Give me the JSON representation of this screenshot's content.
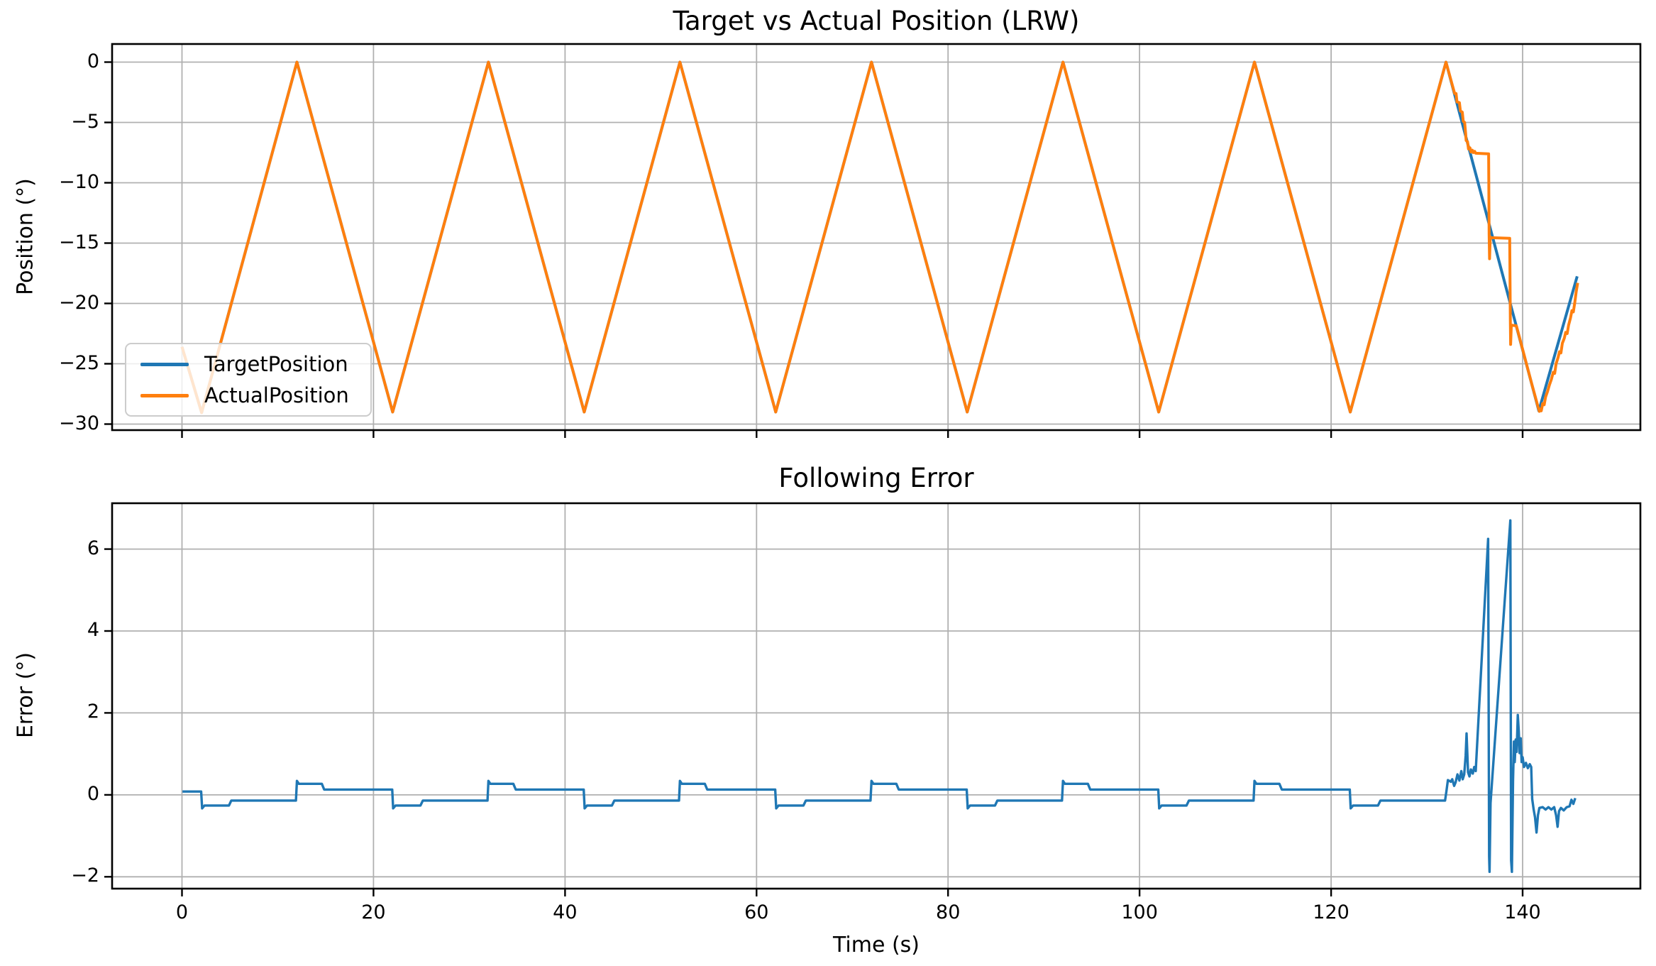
{
  "figure": {
    "background": "#ffffff",
    "grid_color": "#b0b0b0",
    "spine_color": "#000000",
    "text_color": "#000000"
  },
  "chart_data": [
    {
      "type": "line",
      "title": "Target vs Actual Position (LRW)",
      "xlabel": "",
      "ylabel": "Position (°)",
      "xlim": [
        -7.3,
        152.3
      ],
      "ylim": [
        -30.5,
        1.5
      ],
      "x_ticks": [
        0,
        20,
        40,
        60,
        80,
        100,
        120,
        140
      ],
      "x_tick_labels_visible": false,
      "y_ticks": [
        0,
        -5,
        -10,
        -15,
        -20,
        -25,
        -30
      ],
      "grid": true,
      "legend": {
        "location": "lower left",
        "entries": [
          "TargetPosition",
          "ActualPosition"
        ]
      },
      "series": [
        {
          "name": "TargetPosition",
          "color": "#1f77b4",
          "points": [
            [
              0.0,
              -23.6
            ],
            [
              2.05,
              -29.05
            ],
            [
              12.0,
              0.0
            ],
            [
              22.0,
              -29.0
            ],
            [
              32.0,
              0.0
            ],
            [
              42.0,
              -29.0
            ],
            [
              52.0,
              0.0
            ],
            [
              62.0,
              -29.0
            ],
            [
              72.0,
              0.0
            ],
            [
              82.0,
              -29.0
            ],
            [
              92.0,
              0.0
            ],
            [
              102.0,
              -29.0
            ],
            [
              112.0,
              0.0
            ],
            [
              122.0,
              -29.0
            ],
            [
              132.0,
              0.0
            ],
            [
              141.7,
              -28.9
            ],
            [
              145.7,
              -17.75
            ]
          ]
        },
        {
          "name": "ActualPosition",
          "color": "#ff7f0e",
          "points": [
            [
              0.0,
              -23.6
            ],
            [
              2.05,
              -29.05
            ],
            [
              12.0,
              0.0
            ],
            [
              22.0,
              -29.0
            ],
            [
              32.0,
              0.0
            ],
            [
              42.0,
              -29.0
            ],
            [
              52.0,
              0.0
            ],
            [
              62.0,
              -29.0
            ],
            [
              72.0,
              0.0
            ],
            [
              82.0,
              -29.0
            ],
            [
              92.0,
              0.0
            ],
            [
              102.0,
              -29.0
            ],
            [
              112.0,
              0.0
            ],
            [
              122.0,
              -29.0
            ],
            [
              132.0,
              0.0
            ],
            [
              132.9,
              -2.6
            ],
            [
              133.05,
              -2.6
            ],
            [
              133.15,
              -3.3
            ],
            [
              133.4,
              -3.35
            ],
            [
              133.5,
              -4.05
            ],
            [
              133.7,
              -4.15
            ],
            [
              133.8,
              -4.9
            ],
            [
              133.95,
              -5.0
            ],
            [
              134.05,
              -5.9
            ],
            [
              134.1,
              -6.5
            ],
            [
              134.25,
              -6.6
            ],
            [
              134.35,
              -7.2
            ],
            [
              134.5,
              -7.1
            ],
            [
              134.6,
              -7.45
            ],
            [
              134.75,
              -7.3
            ],
            [
              134.85,
              -7.5
            ],
            [
              135.0,
              -7.4
            ],
            [
              135.1,
              -7.55
            ],
            [
              136.45,
              -7.6
            ],
            [
              136.5,
              -14.3
            ],
            [
              136.55,
              -16.3
            ],
            [
              136.62,
              -14.5
            ],
            [
              136.75,
              -14.55
            ],
            [
              138.65,
              -14.6
            ],
            [
              138.72,
              -21.4
            ],
            [
              138.75,
              -23.4
            ],
            [
              138.82,
              -21.8
            ],
            [
              139.35,
              -21.85
            ],
            [
              139.6,
              -22.6
            ],
            [
              140.0,
              -23.8
            ],
            [
              140.5,
              -25.3
            ],
            [
              141.0,
              -26.8
            ],
            [
              141.35,
              -27.8
            ],
            [
              141.55,
              -28.4
            ],
            [
              141.75,
              -28.95
            ],
            [
              141.85,
              -28.75
            ],
            [
              141.95,
              -28.9
            ],
            [
              142.1,
              -28.3
            ],
            [
              142.25,
              -28.4
            ],
            [
              142.4,
              -27.75
            ],
            [
              142.6,
              -27.3
            ],
            [
              142.8,
              -26.75
            ],
            [
              143.0,
              -26.3
            ],
            [
              143.2,
              -25.7
            ],
            [
              143.35,
              -25.8
            ],
            [
              143.5,
              -25.0
            ],
            [
              143.7,
              -24.5
            ],
            [
              143.85,
              -24.0
            ],
            [
              144.0,
              -24.1
            ],
            [
              144.15,
              -23.3
            ],
            [
              144.35,
              -22.9
            ],
            [
              144.5,
              -22.4
            ],
            [
              144.65,
              -22.5
            ],
            [
              144.8,
              -21.8
            ],
            [
              145.0,
              -21.2
            ],
            [
              145.15,
              -20.6
            ],
            [
              145.3,
              -20.7
            ],
            [
              145.45,
              -19.9
            ],
            [
              145.6,
              -19.0
            ],
            [
              145.75,
              -18.3
            ]
          ]
        }
      ]
    },
    {
      "type": "line",
      "title": "Following Error",
      "xlabel": "Time (s)",
      "ylabel": "Error (°)",
      "xlim": [
        -7.3,
        152.3
      ],
      "ylim": [
        -2.29,
        7.12
      ],
      "x_ticks": [
        0,
        20,
        40,
        60,
        80,
        100,
        120,
        140
      ],
      "x_tick_labels_visible": true,
      "y_ticks": [
        6,
        4,
        2,
        0,
        -2
      ],
      "grid": true,
      "legend": null,
      "series": [
        {
          "name": "FollowingError",
          "color": "#1f77b4",
          "points": [
            [
              0.05,
              0.08
            ],
            [
              2.0,
              0.08
            ],
            [
              2.1,
              -0.33
            ],
            [
              2.35,
              -0.26
            ],
            [
              4.9,
              -0.26
            ],
            [
              5.15,
              -0.14
            ],
            [
              11.9,
              -0.14
            ],
            [
              12.0,
              0.34
            ],
            [
              12.2,
              0.27
            ],
            [
              14.6,
              0.27
            ],
            [
              14.85,
              0.13
            ],
            [
              21.95,
              0.13
            ],
            [
              22.05,
              -0.33
            ],
            [
              22.3,
              -0.26
            ],
            [
              24.9,
              -0.26
            ],
            [
              25.15,
              -0.14
            ],
            [
              31.9,
              -0.14
            ],
            [
              32.0,
              0.34
            ],
            [
              32.2,
              0.27
            ],
            [
              34.6,
              0.27
            ],
            [
              34.85,
              0.13
            ],
            [
              41.95,
              0.13
            ],
            [
              42.05,
              -0.33
            ],
            [
              42.3,
              -0.26
            ],
            [
              44.9,
              -0.26
            ],
            [
              45.15,
              -0.14
            ],
            [
              51.9,
              -0.14
            ],
            [
              52.0,
              0.34
            ],
            [
              52.2,
              0.27
            ],
            [
              54.6,
              0.27
            ],
            [
              54.85,
              0.13
            ],
            [
              61.95,
              0.13
            ],
            [
              62.05,
              -0.33
            ],
            [
              62.3,
              -0.26
            ],
            [
              64.9,
              -0.26
            ],
            [
              65.15,
              -0.14
            ],
            [
              71.9,
              -0.14
            ],
            [
              72.0,
              0.34
            ],
            [
              72.2,
              0.27
            ],
            [
              74.6,
              0.27
            ],
            [
              74.85,
              0.13
            ],
            [
              81.95,
              0.13
            ],
            [
              82.05,
              -0.33
            ],
            [
              82.3,
              -0.26
            ],
            [
              84.9,
              -0.26
            ],
            [
              85.15,
              -0.14
            ],
            [
              91.9,
              -0.14
            ],
            [
              92.0,
              0.34
            ],
            [
              92.2,
              0.27
            ],
            [
              94.6,
              0.27
            ],
            [
              94.85,
              0.13
            ],
            [
              101.95,
              0.13
            ],
            [
              102.05,
              -0.33
            ],
            [
              102.3,
              -0.26
            ],
            [
              104.9,
              -0.26
            ],
            [
              105.15,
              -0.14
            ],
            [
              111.9,
              -0.14
            ],
            [
              112.0,
              0.34
            ],
            [
              112.2,
              0.27
            ],
            [
              114.6,
              0.27
            ],
            [
              114.85,
              0.13
            ],
            [
              121.95,
              0.13
            ],
            [
              122.05,
              -0.33
            ],
            [
              122.3,
              -0.26
            ],
            [
              124.9,
              -0.26
            ],
            [
              125.15,
              -0.14
            ],
            [
              131.9,
              -0.14
            ],
            [
              132.05,
              0.1
            ],
            [
              132.2,
              0.36
            ],
            [
              132.5,
              0.32
            ],
            [
              132.65,
              0.38
            ],
            [
              132.85,
              0.22
            ],
            [
              133.0,
              0.3
            ],
            [
              133.2,
              0.5
            ],
            [
              133.4,
              0.35
            ],
            [
              133.6,
              0.58
            ],
            [
              133.75,
              0.38
            ],
            [
              133.9,
              0.5
            ],
            [
              134.05,
              0.95
            ],
            [
              134.15,
              1.5
            ],
            [
              134.3,
              0.55
            ],
            [
              134.45,
              0.45
            ],
            [
              134.6,
              0.62
            ],
            [
              134.8,
              0.52
            ],
            [
              134.95,
              0.68
            ],
            [
              135.1,
              0.58
            ],
            [
              136.4,
              6.25
            ],
            [
              136.5,
              -1.5
            ],
            [
              136.55,
              -1.88
            ],
            [
              136.65,
              -0.2
            ],
            [
              138.72,
              6.7
            ],
            [
              138.8,
              -1.6
            ],
            [
              138.88,
              -1.88
            ],
            [
              139.0,
              0.35
            ],
            [
              139.1,
              1.3
            ],
            [
              139.18,
              0.8
            ],
            [
              139.28,
              1.35
            ],
            [
              139.38,
              1.05
            ],
            [
              139.5,
              1.95
            ],
            [
              139.6,
              1.55
            ],
            [
              139.68,
              1.02
            ],
            [
              139.8,
              1.38
            ],
            [
              139.9,
              0.8
            ],
            [
              140.0,
              0.92
            ],
            [
              140.15,
              0.68
            ],
            [
              140.35,
              0.78
            ],
            [
              140.55,
              0.65
            ],
            [
              140.75,
              0.75
            ],
            [
              140.9,
              0.68
            ],
            [
              141.0,
              -0.1
            ],
            [
              141.15,
              -0.35
            ],
            [
              141.3,
              -0.55
            ],
            [
              141.45,
              -0.92
            ],
            [
              141.6,
              -0.5
            ],
            [
              141.75,
              -0.32
            ],
            [
              142.1,
              -0.3
            ],
            [
              142.4,
              -0.36
            ],
            [
              142.7,
              -0.3
            ],
            [
              143.0,
              -0.36
            ],
            [
              143.3,
              -0.3
            ],
            [
              143.5,
              -0.5
            ],
            [
              143.65,
              -0.78
            ],
            [
              143.8,
              -0.4
            ],
            [
              144.0,
              -0.32
            ],
            [
              144.3,
              -0.38
            ],
            [
              144.6,
              -0.3
            ],
            [
              144.9,
              -0.28
            ],
            [
              145.1,
              -0.12
            ],
            [
              145.3,
              -0.22
            ],
            [
              145.5,
              -0.08
            ]
          ]
        }
      ]
    }
  ]
}
